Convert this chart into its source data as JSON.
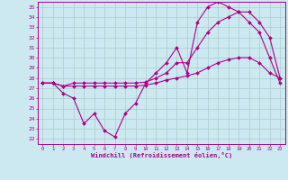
{
  "xlabel": "Windchill (Refroidissement éolien,°C)",
  "bg_color": "#cce8f0",
  "grid_color": "#aacccc",
  "line_color": "#aa0088",
  "xlim": [
    -0.5,
    23.5
  ],
  "ylim": [
    21.5,
    35.5
  ],
  "xticks": [
    0,
    1,
    2,
    3,
    4,
    5,
    6,
    7,
    8,
    9,
    10,
    11,
    12,
    13,
    14,
    15,
    16,
    17,
    18,
    19,
    20,
    21,
    22,
    23
  ],
  "yticks": [
    22,
    23,
    24,
    25,
    26,
    27,
    28,
    29,
    30,
    31,
    32,
    33,
    34,
    35
  ],
  "line1_x": [
    0,
    1,
    2,
    3,
    4,
    5,
    6,
    7,
    8,
    9,
    10,
    11,
    12,
    13,
    14,
    15,
    16,
    17,
    18,
    19,
    20,
    21,
    22,
    23
  ],
  "line1_y": [
    27.5,
    27.5,
    26.5,
    26.0,
    23.5,
    24.5,
    22.8,
    22.2,
    24.5,
    25.5,
    27.5,
    28.5,
    29.5,
    31.0,
    28.5,
    33.5,
    35.0,
    35.5,
    35.0,
    34.5,
    33.5,
    32.5,
    30.0,
    27.5
  ],
  "line2_x": [
    0,
    1,
    2,
    3,
    4,
    5,
    6,
    7,
    8,
    9,
    10,
    11,
    12,
    13,
    14,
    15,
    16,
    17,
    18,
    19,
    20,
    21,
    22,
    23
  ],
  "line2_y": [
    27.5,
    27.5,
    27.2,
    27.5,
    27.5,
    27.5,
    27.5,
    27.5,
    27.5,
    27.5,
    27.6,
    28.0,
    28.5,
    29.5,
    29.5,
    31.0,
    32.5,
    33.5,
    34.0,
    34.5,
    34.5,
    33.5,
    32.0,
    28.0
  ],
  "line3_x": [
    0,
    1,
    2,
    3,
    4,
    5,
    6,
    7,
    8,
    9,
    10,
    11,
    12,
    13,
    14,
    15,
    16,
    17,
    18,
    19,
    20,
    21,
    22,
    23
  ],
  "line3_y": [
    27.5,
    27.5,
    27.2,
    27.2,
    27.2,
    27.2,
    27.2,
    27.2,
    27.2,
    27.2,
    27.3,
    27.5,
    27.8,
    28.0,
    28.2,
    28.5,
    29.0,
    29.5,
    29.8,
    30.0,
    30.0,
    29.5,
    28.5,
    28.0
  ]
}
